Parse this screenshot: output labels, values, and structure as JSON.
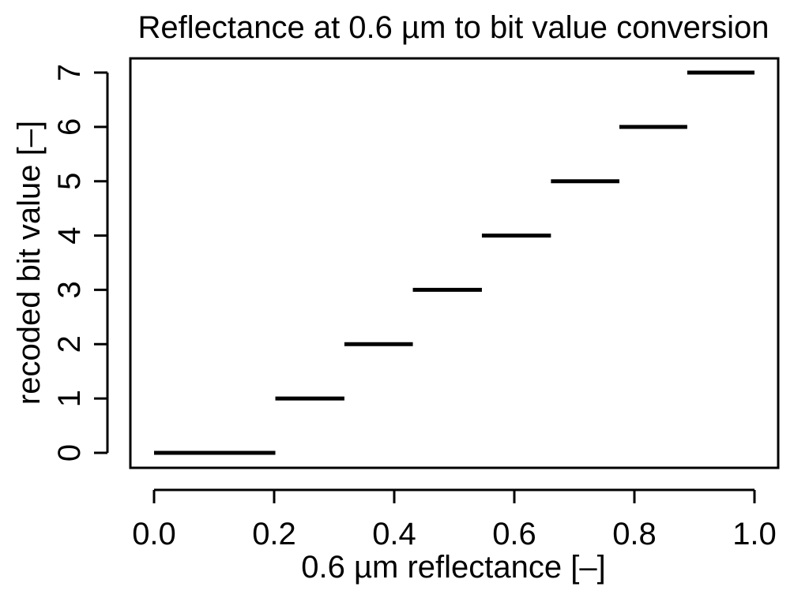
{
  "chart_data": {
    "type": "line",
    "title": "Reflectance at 0.6 µm to bit value conversion",
    "xlabel": "0.6 µm reflectance [–]",
    "ylabel": "recoded bit value [–]",
    "xlim": [
      0.0,
      1.0
    ],
    "ylim": [
      0,
      7
    ],
    "x_ticks": [
      "0.0",
      "0.2",
      "0.4",
      "0.6",
      "0.8",
      "1.0"
    ],
    "y_ticks": [
      "0",
      "1",
      "2",
      "3",
      "4",
      "5",
      "6",
      "7"
    ],
    "grid": false,
    "segments": [
      {
        "x_start": 0.0,
        "x_end": 0.202,
        "y": 0
      },
      {
        "x_start": 0.202,
        "x_end": 0.317,
        "y": 1
      },
      {
        "x_start": 0.317,
        "x_end": 0.431,
        "y": 2
      },
      {
        "x_start": 0.431,
        "x_end": 0.546,
        "y": 3
      },
      {
        "x_start": 0.546,
        "x_end": 0.661,
        "y": 4
      },
      {
        "x_start": 0.661,
        "x_end": 0.775,
        "y": 5
      },
      {
        "x_start": 0.775,
        "x_end": 0.888,
        "y": 6
      },
      {
        "x_start": 0.888,
        "x_end": 1.0,
        "y": 7
      }
    ],
    "colors": {
      "line": "#000000",
      "background": "#ffffff"
    }
  }
}
